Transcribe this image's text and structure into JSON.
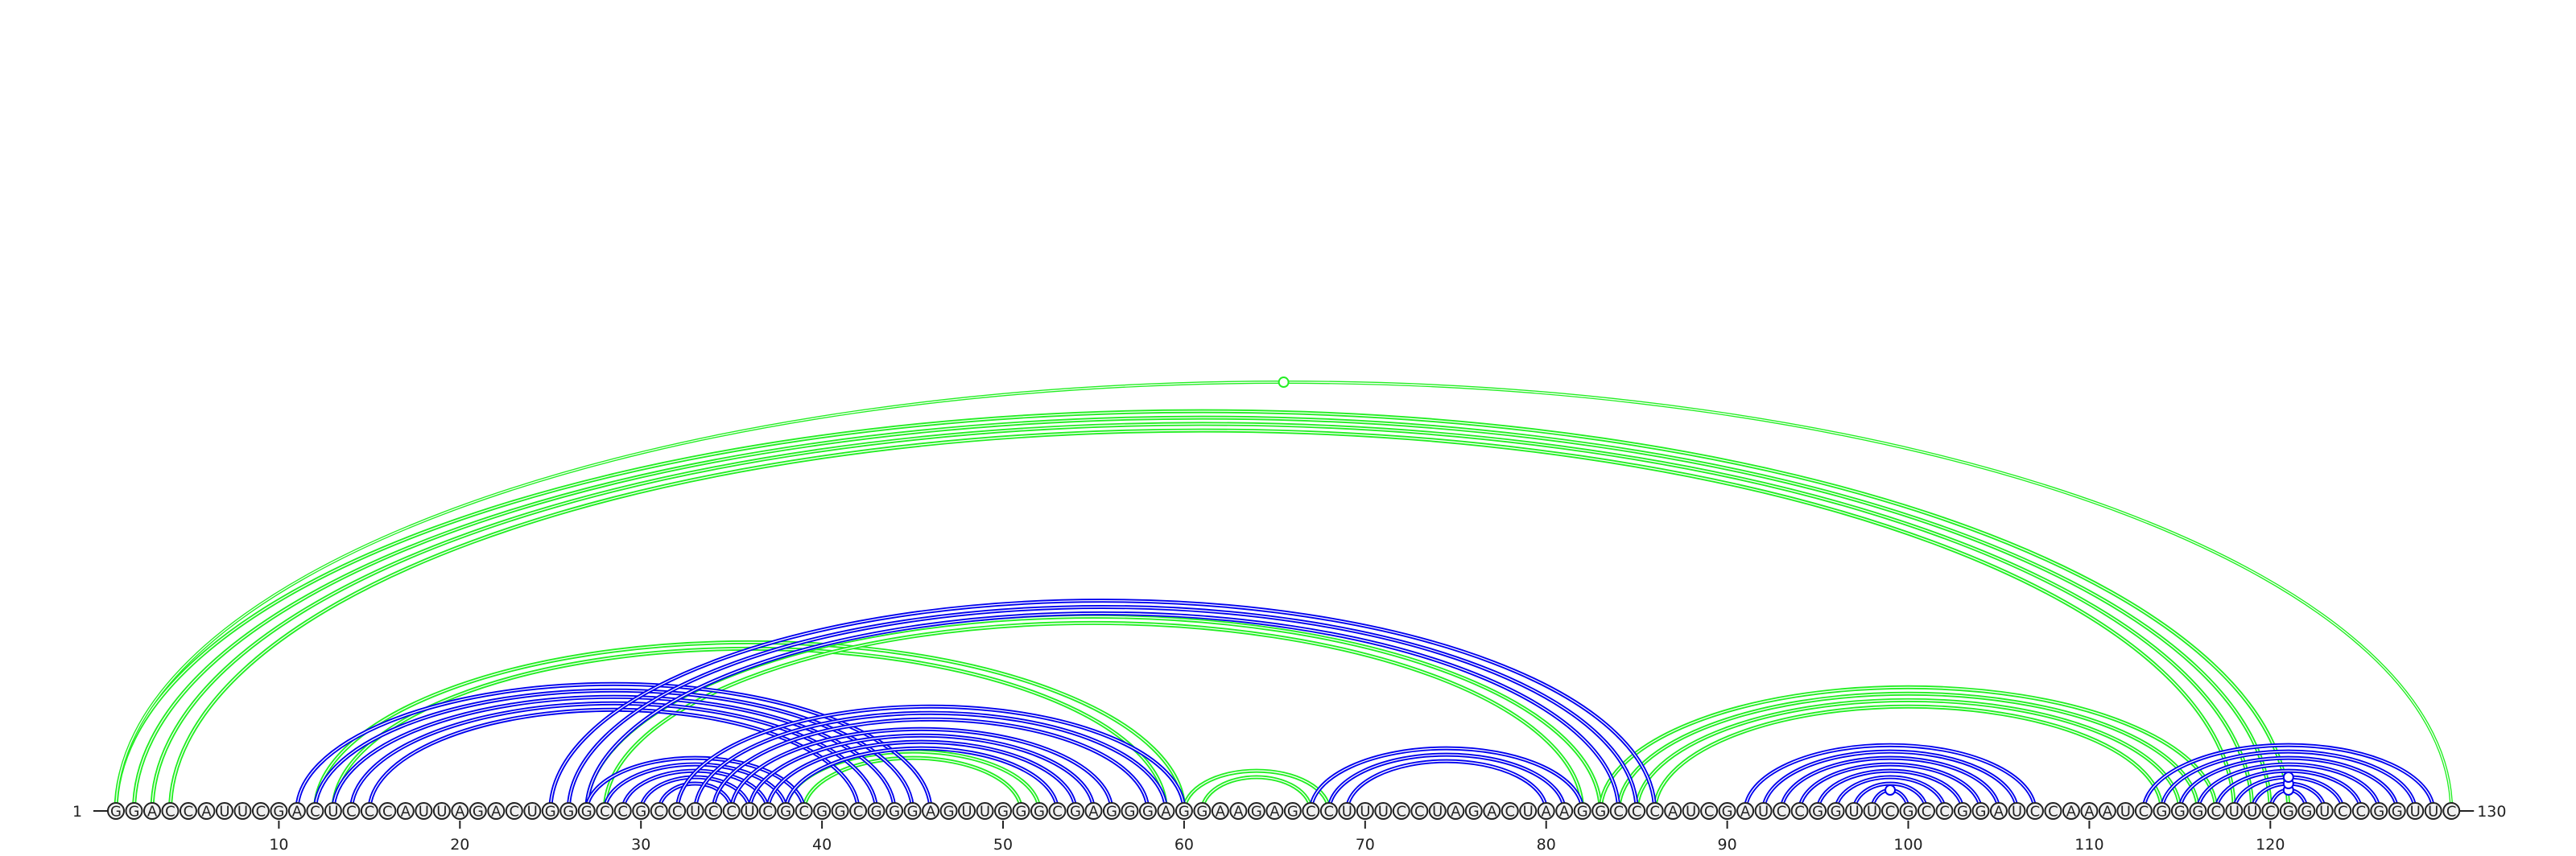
{
  "sequence": "GGACCAUUCGACUCCCAUUAGACUGGGCCGCCUCCUCGCGGCGGGAGUUGGGCGAGGGAGGAAGAGCCUUUCCUAGACUAAGGCCCAUCGAUCCGGUUCGCCGGAUCCAAAUCGGGCUUCGGUCCGGUUC",
  "start_label": "1",
  "end_label": "130",
  "ticks": [
    10,
    20,
    30,
    40,
    50,
    60,
    70,
    80,
    90,
    100,
    110,
    120
  ],
  "colors": {
    "blue": "#0000ee",
    "green": "#22ee22",
    "ink": "#222222"
  },
  "blue_stems": [
    {
      "pairs": [
        [
          11,
          46
        ],
        [
          12,
          45
        ],
        [
          13,
          44
        ],
        [
          14,
          43
        ],
        [
          15,
          42
        ]
      ]
    },
    {
      "pairs": [
        [
          25,
          86
        ],
        [
          26,
          85
        ],
        [
          27,
          84
        ]
      ]
    },
    {
      "pairs": [
        [
          27,
          39
        ],
        [
          28,
          38
        ],
        [
          29,
          37
        ],
        [
          30,
          36
        ],
        [
          31,
          35
        ]
      ]
    },
    {
      "pairs": [
        [
          32,
          60
        ],
        [
          33,
          59
        ],
        [
          34,
          58
        ]
      ]
    },
    {
      "pairs": [
        [
          35,
          56
        ],
        [
          36,
          55
        ],
        [
          37,
          54
        ],
        [
          38,
          53
        ]
      ]
    },
    {
      "pairs": [
        [
          67,
          82
        ],
        [
          68,
          81
        ],
        [
          69,
          80
        ]
      ]
    },
    {
      "pairs": [
        [
          91,
          107
        ],
        [
          92,
          106
        ],
        [
          93,
          105
        ],
        [
          94,
          104
        ],
        [
          95,
          103
        ],
        [
          96,
          102
        ],
        [
          97,
          101
        ],
        [
          98,
          100
        ]
      ]
    },
    {
      "pairs": [
        [
          113,
          129
        ],
        [
          114,
          128
        ],
        [
          115,
          127
        ],
        [
          116,
          126
        ],
        [
          117,
          125
        ],
        [
          118,
          124
        ],
        [
          119,
          123
        ],
        [
          120,
          122
        ]
      ]
    }
  ],
  "green_stems": [
    {
      "pairs": [
        [
          1,
          121
        ],
        [
          2,
          120
        ],
        [
          3,
          119
        ],
        [
          4,
          118
        ]
      ]
    },
    {
      "pairs": [
        [
          12,
          60
        ],
        [
          13,
          59
        ]
      ]
    },
    {
      "pairs": [
        [
          27,
          83
        ],
        [
          28,
          82
        ]
      ]
    },
    {
      "pairs": [
        [
          38,
          52
        ],
        [
          39,
          51
        ]
      ]
    },
    {
      "pairs": [
        [
          60,
          68
        ],
        [
          61,
          67
        ]
      ]
    },
    {
      "pairs": [
        [
          83,
          117
        ],
        [
          84,
          116
        ],
        [
          85,
          115
        ],
        [
          86,
          114
        ]
      ]
    },
    {
      "pairs": [
        [
          1,
          130
        ]
      ]
    }
  ],
  "markers": [
    {
      "color": "green",
      "pair": [
        1,
        130
      ]
    },
    {
      "color": "blue",
      "pair": [
        98,
        100
      ]
    },
    {
      "color": "blue",
      "pair": [
        120,
        122
      ]
    },
    {
      "color": "blue",
      "pair": [
        119,
        123
      ]
    },
    {
      "color": "blue",
      "pair": [
        118,
        124
      ]
    }
  ]
}
